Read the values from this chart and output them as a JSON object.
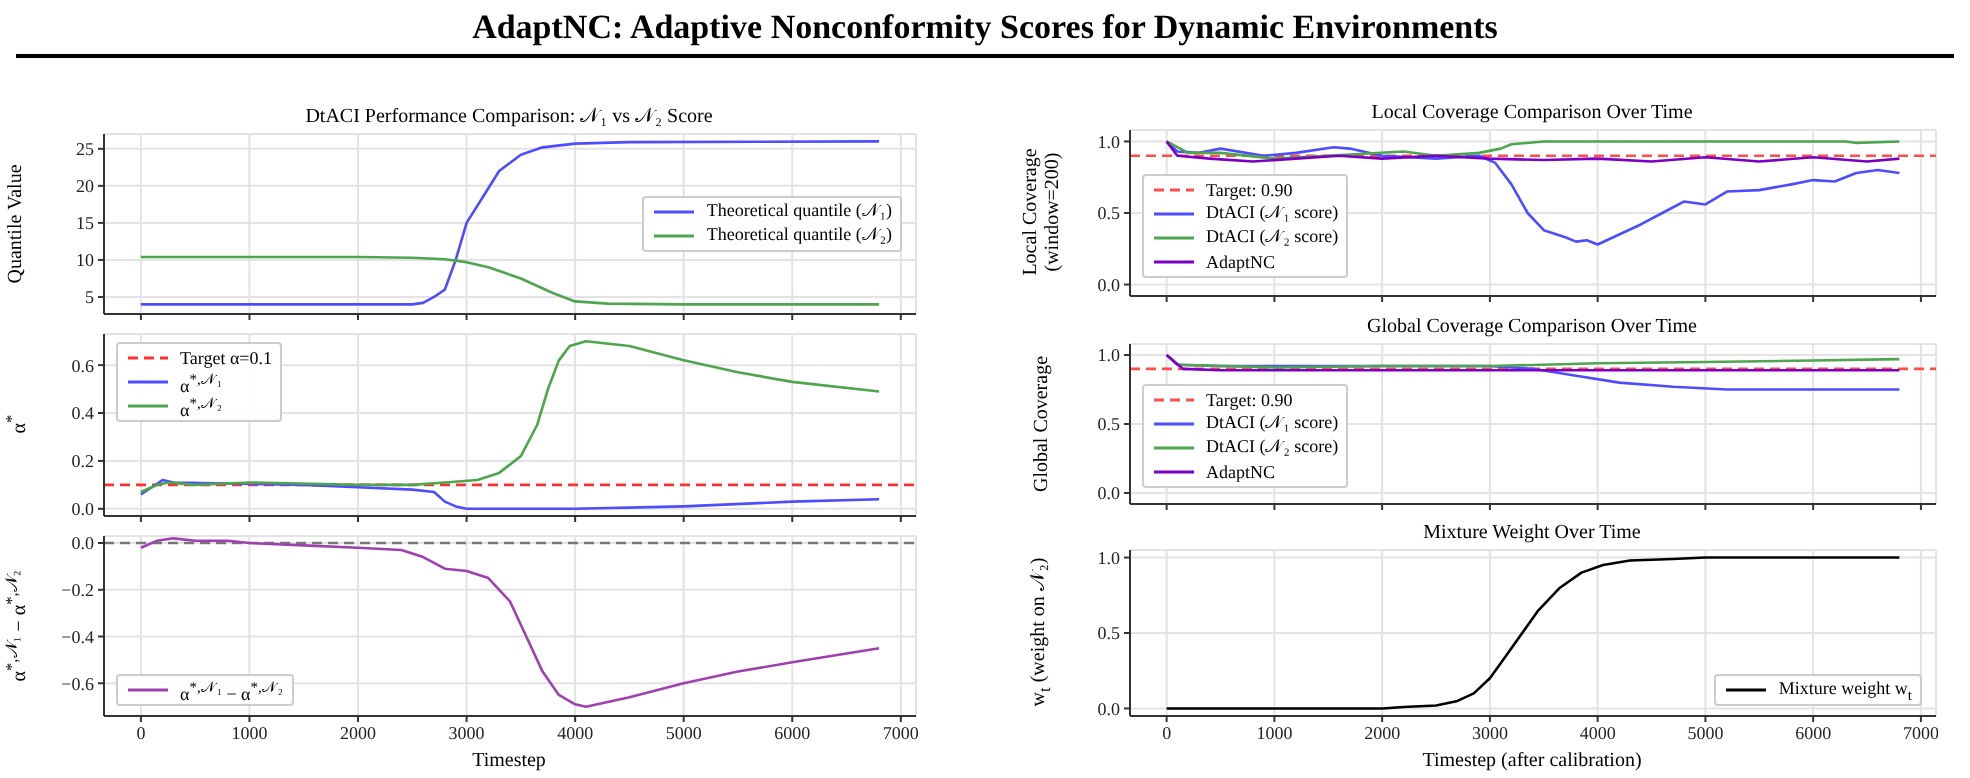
{
  "chart_data": [
    {
      "type": "other",
      "title": "AdaptNC: Adaptive Nonconformity Scores for Dynamic Environments"
    },
    {
      "type": "line",
      "title": "DtACI Performance Comparison: 𝒩₁ vs 𝒩₂ Score",
      "ylabel": "Quantile Value",
      "xlim": [
        -340,
        7140
      ],
      "xticks": [
        0,
        1000,
        2000,
        3000,
        4000,
        5000,
        6000,
        7000
      ],
      "ylim": [
        2.7,
        27
      ],
      "yticks": [
        5,
        10,
        15,
        20,
        25
      ],
      "tick_labels": "y",
      "grid": true,
      "legend": "right",
      "series": [
        {
          "name": "Theoretical quantile (𝒩₁)",
          "color": "#4d4dff",
          "x": [
            0,
            1000,
            2000,
            2500,
            2600,
            2700,
            2800,
            2900,
            3000,
            3150,
            3300,
            3500,
            3700,
            4000,
            4500,
            6800
          ],
          "values": [
            4,
            4,
            4,
            4,
            4.2,
            5,
            6,
            10,
            15,
            18.5,
            22,
            24.2,
            25.2,
            25.7,
            25.9,
            26
          ]
        },
        {
          "name": "Theoretical quantile (𝒩₂)",
          "color": "#4da64d",
          "x": [
            0,
            1000,
            2000,
            2500,
            2800,
            3000,
            3200,
            3500,
            3800,
            4000,
            4300,
            5000,
            6800
          ],
          "values": [
            10.4,
            10.4,
            10.4,
            10.3,
            10.1,
            9.7,
            9,
            7.5,
            5.5,
            4.4,
            4.1,
            4,
            4
          ]
        }
      ]
    },
    {
      "type": "line",
      "title": "Local Coverage Comparison Over Time",
      "ylabel": "Local Coverage\n(window=200)",
      "xlim": [
        -340,
        7140
      ],
      "xticks": [
        0,
        1000,
        2000,
        3000,
        4000,
        5000,
        6000,
        7000
      ],
      "ylim": [
        -0.08,
        1.08
      ],
      "yticks": [
        {
          "value": 0,
          "label": "0.0"
        },
        {
          "value": 0.5,
          "label": "0.5"
        },
        {
          "value": 1,
          "label": "1.0"
        }
      ],
      "tick_labels": "y",
      "grid": true,
      "legend": "left",
      "ref_lines": [
        {
          "axis": "y",
          "value": 0.9,
          "label": "Target: 0.90",
          "color": "#ff4d4d",
          "line_style": "dashed"
        }
      ],
      "series": [
        {
          "name": "DtACI (𝒩₁ score)",
          "color": "#4d4dff",
          "x": [
            0,
            100,
            300,
            500,
            900,
            1200,
            1550,
            1700,
            2000,
            2500,
            2900,
            3050,
            3200,
            3350,
            3500,
            3700,
            3800,
            3900,
            4000,
            4200,
            4400,
            4600,
            4800,
            5000,
            5200,
            5500,
            5800,
            6000,
            6200,
            6400,
            6600,
            6800
          ],
          "values": [
            1,
            0.93,
            0.92,
            0.95,
            0.9,
            0.92,
            0.96,
            0.95,
            0.9,
            0.88,
            0.9,
            0.85,
            0.7,
            0.5,
            0.38,
            0.33,
            0.3,
            0.31,
            0.28,
            0.35,
            0.42,
            0.5,
            0.58,
            0.56,
            0.65,
            0.66,
            0.7,
            0.73,
            0.72,
            0.78,
            0.8,
            0.78
          ]
        },
        {
          "name": "DtACI (𝒩₂ score)",
          "color": "#4da64d",
          "x": [
            0,
            200,
            500,
            1000,
            1500,
            2200,
            2500,
            2900,
            3100,
            3200,
            3500,
            6300,
            6400,
            6800
          ],
          "values": [
            1,
            0.92,
            0.92,
            0.88,
            0.9,
            0.93,
            0.9,
            0.92,
            0.95,
            0.98,
            1,
            1,
            0.99,
            1
          ]
        },
        {
          "name": "AdaptNC",
          "color": "#7b00c4",
          "x": [
            0,
            100,
            400,
            800,
            1200,
            1600,
            2000,
            2500,
            3000,
            3500,
            4000,
            4500,
            5000,
            5500,
            6000,
            6500,
            6800
          ],
          "values": [
            1,
            0.9,
            0.88,
            0.86,
            0.88,
            0.9,
            0.88,
            0.9,
            0.88,
            0.87,
            0.88,
            0.86,
            0.89,
            0.86,
            0.89,
            0.86,
            0.88
          ]
        }
      ]
    },
    {
      "type": "line",
      "ylabel": "α$^{*}$",
      "xlim": [
        -340,
        7140
      ],
      "xticks": [
        0,
        1000,
        2000,
        3000,
        4000,
        5000,
        6000,
        7000
      ],
      "ylim": [
        -0.03,
        0.73
      ],
      "yticks": [
        {
          "value": 0,
          "label": "0.0"
        },
        {
          "value": 0.2,
          "label": "0.2"
        },
        {
          "value": 0.4,
          "label": "0.4"
        },
        {
          "value": 0.6,
          "label": "0.6"
        }
      ],
      "tick_labels": "y",
      "grid": true,
      "legend": "top left",
      "ref_lines": [
        {
          "axis": "y",
          "value": 0.1,
          "label": "Target α=0.1",
          "color": "#ff3030",
          "line_style": "dashed"
        }
      ],
      "series": [
        {
          "name": "α$^{*,𝒩₁}$",
          "color": "#4d4dff",
          "x": [
            0,
            100,
            200,
            300,
            1500,
            2000,
            2500,
            2700,
            2800,
            2900,
            3000,
            4000,
            5000,
            6000,
            6800
          ],
          "values": [
            0.06,
            0.09,
            0.12,
            0.11,
            0.1,
            0.09,
            0.08,
            0.07,
            0.03,
            0.01,
            0,
            0,
            0.01,
            0.03,
            0.04
          ]
        },
        {
          "name": "α$^{*,𝒩₂}$",
          "color": "#4da64d",
          "x": [
            0,
            150,
            250,
            500,
            1000,
            2000,
            2500,
            2800,
            3100,
            3300,
            3500,
            3650,
            3750,
            3850,
            3950,
            4100,
            4500,
            5000,
            5500,
            6000,
            6800
          ],
          "values": [
            0.07,
            0.1,
            0.11,
            0.1,
            0.11,
            0.1,
            0.1,
            0.11,
            0.12,
            0.15,
            0.22,
            0.35,
            0.5,
            0.62,
            0.68,
            0.7,
            0.68,
            0.62,
            0.57,
            0.53,
            0.49
          ]
        }
      ]
    },
    {
      "type": "line",
      "title": "Global Coverage Comparison Over Time",
      "ylabel": "Global Coverage",
      "xlim": [
        -340,
        7140
      ],
      "xticks": [
        0,
        1000,
        2000,
        3000,
        4000,
        5000,
        6000,
        7000
      ],
      "ylim": [
        -0.08,
        1.08
      ],
      "yticks": [
        {
          "value": 0,
          "label": "0.0"
        },
        {
          "value": 0.5,
          "label": "0.5"
        },
        {
          "value": 1,
          "label": "1.0"
        }
      ],
      "tick_labels": "y",
      "grid": true,
      "legend": "left",
      "ref_lines": [
        {
          "axis": "y",
          "value": 0.9,
          "label": "Target: 0.90",
          "color": "#ff4d4d",
          "line_style": "dashed"
        }
      ],
      "series": [
        {
          "name": "DtACI (𝒩₁ score)",
          "color": "#4d4dff",
          "x": [
            0,
            100,
            500,
            2000,
            3000,
            3400,
            3800,
            4200,
            4700,
            5200,
            6000,
            6800
          ],
          "values": [
            1,
            0.93,
            0.92,
            0.92,
            0.92,
            0.9,
            0.85,
            0.8,
            0.77,
            0.75,
            0.75,
            0.75
          ]
        },
        {
          "name": "DtACI (𝒩₂ score)",
          "color": "#4da64d",
          "x": [
            100,
            1000,
            2000,
            3000,
            4000,
            5000,
            6000,
            6800
          ],
          "values": [
            0.93,
            0.91,
            0.92,
            0.92,
            0.94,
            0.95,
            0.96,
            0.97
          ]
        },
        {
          "name": "AdaptNC",
          "color": "#7b00c4",
          "x": [
            0,
            150,
            500,
            2000,
            4000,
            6800
          ],
          "values": [
            1,
            0.9,
            0.89,
            0.89,
            0.89,
            0.89
          ]
        }
      ]
    },
    {
      "type": "line",
      "xlabel": "Timestep",
      "ylabel": "α$^{*,𝒩₁}$ − α$^{*,𝒩₂}$",
      "xlim": [
        -340,
        7140
      ],
      "xticks": [
        0,
        1000,
        2000,
        3000,
        4000,
        5000,
        6000,
        7000
      ],
      "ylim": [
        -0.74,
        0.03
      ],
      "yticks": [
        {
          "value": 0,
          "label": "0.0"
        },
        {
          "value": -0.2,
          "label": "−0.2"
        },
        {
          "value": -0.4,
          "label": "−0.4"
        },
        {
          "value": -0.6,
          "label": "−0.6"
        }
      ],
      "grid": true,
      "legend": "bottom left",
      "ref_lines": [
        {
          "axis": "y",
          "value": 0,
          "color": "#777777",
          "line_style": "dashed"
        }
      ],
      "series": [
        {
          "name": "α$^{*,𝒩₁}$ − α$^{*,𝒩₂}$",
          "color": "#a040b0",
          "x": [
            0,
            150,
            300,
            500,
            800,
            1000,
            1500,
            2000,
            2400,
            2600,
            2800,
            3000,
            3200,
            3400,
            3550,
            3700,
            3850,
            4000,
            4100,
            4500,
            5000,
            5500,
            6000,
            6800
          ],
          "values": [
            -0.02,
            0.01,
            0.02,
            0.01,
            0.01,
            0,
            -0.01,
            -0.02,
            -0.03,
            -0.06,
            -0.11,
            -0.12,
            -0.15,
            -0.25,
            -0.4,
            -0.55,
            -0.65,
            -0.69,
            -0.7,
            -0.66,
            -0.6,
            -0.55,
            -0.51,
            -0.45
          ]
        }
      ]
    },
    {
      "type": "line",
      "title": "Mixture Weight Over Time",
      "xlabel": "Timestep (after calibration)",
      "ylabel": "w$_{t}$ (weight on 𝒩₂)",
      "xlim": [
        -340,
        7140
      ],
      "xticks": [
        0,
        1000,
        2000,
        3000,
        4000,
        5000,
        6000,
        7000
      ],
      "ylim": [
        -0.05,
        1.05
      ],
      "yticks": [
        {
          "value": 0,
          "label": "0.0"
        },
        {
          "value": 0.5,
          "label": "0.5"
        },
        {
          "value": 1,
          "label": "1.0"
        }
      ],
      "grid": true,
      "legend": "bottom right",
      "series": [
        {
          "name": "Mixture weight w$_{t}$",
          "color": "#000000",
          "x": [
            0,
            2000,
            2200,
            2500,
            2700,
            2850,
            3000,
            3150,
            3300,
            3450,
            3650,
            3850,
            4050,
            4300,
            4700,
            5000,
            6800
          ],
          "values": [
            0,
            0,
            0.01,
            0.02,
            0.05,
            0.1,
            0.2,
            0.35,
            0.5,
            0.65,
            0.8,
            0.9,
            0.95,
            0.98,
            0.99,
            1,
            1
          ]
        }
      ]
    }
  ]
}
